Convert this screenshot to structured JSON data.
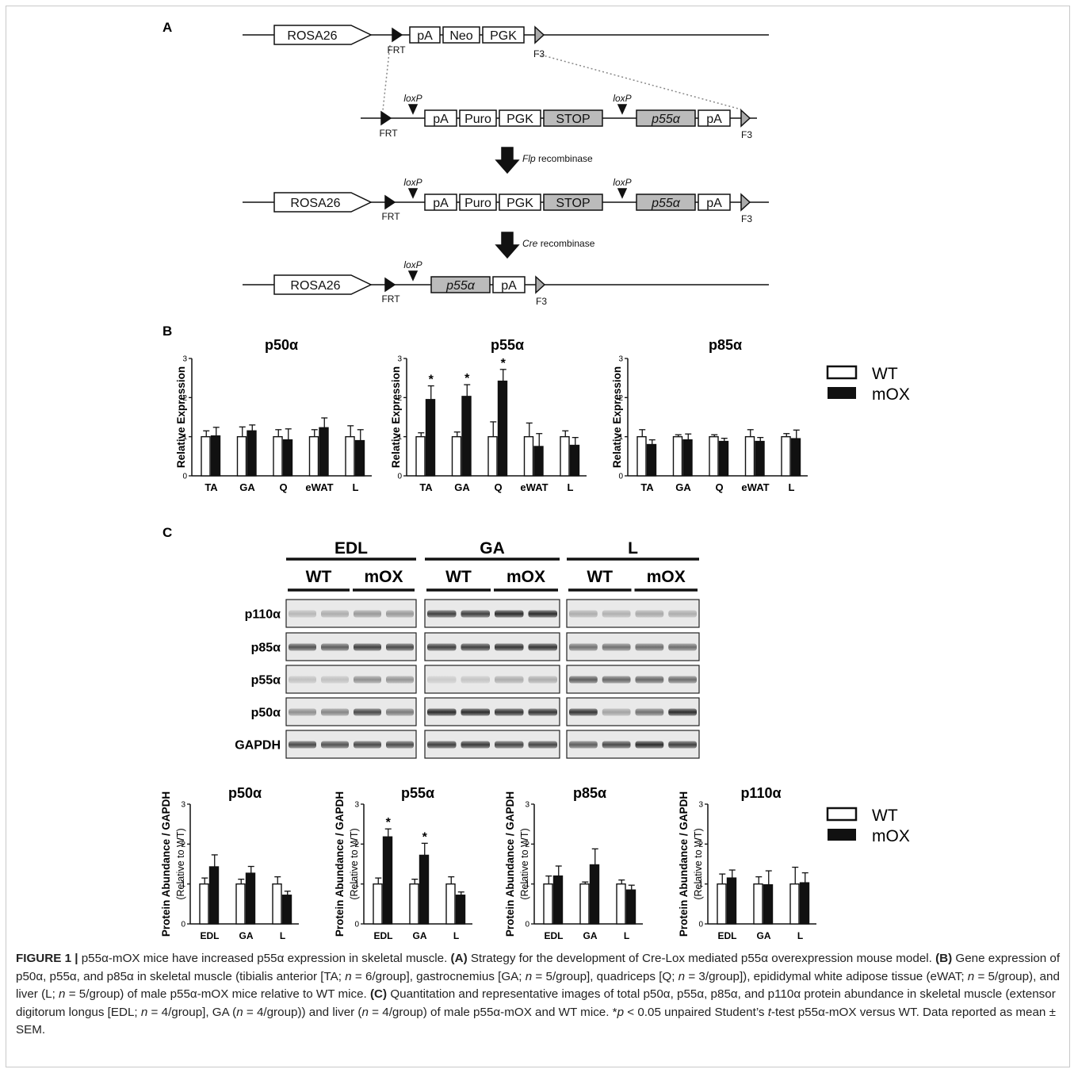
{
  "panel_labels": {
    "a": "A",
    "b": "B",
    "c": "C"
  },
  "construct": {
    "rosa": "ROSA26",
    "frt": "FRT",
    "f3": "F3",
    "loxp": "loxP",
    "pa": "pA",
    "neo": "Neo",
    "pgk": "PGK",
    "puro": "Puro",
    "stop": "STOP",
    "p55": "p55α",
    "flp_rest": "recombinase",
    "flp_italic": "Flp",
    "cre_italic": "Cre",
    "cre_rest": "recombinase"
  },
  "legend": {
    "wt": "WT",
    "mox": "mOX"
  },
  "western": {
    "tissues": [
      "EDL",
      "GA",
      "L"
    ],
    "groups": [
      "WT",
      "mOX"
    ],
    "proteins": [
      "p110α",
      "p85α",
      "p55α",
      "p50α",
      "GAPDH"
    ]
  },
  "chart_data": [
    {
      "type": "bar",
      "title": "p50α",
      "ylabel": "Relative Expression",
      "categories": [
        "TA",
        "GA",
        "Q",
        "eWAT",
        "L"
      ],
      "ylim": [
        0,
        3
      ],
      "yticks": [
        0,
        1,
        2,
        3
      ],
      "series": [
        {
          "name": "WT",
          "values": [
            1.0,
            1.0,
            1.0,
            1.0,
            1.0
          ],
          "errors": [
            0.15,
            0.25,
            0.18,
            0.18,
            0.28
          ]
        },
        {
          "name": "mOX",
          "values": [
            1.02,
            1.15,
            0.92,
            1.23,
            0.9
          ],
          "errors": [
            0.22,
            0.15,
            0.28,
            0.25,
            0.28
          ]
        }
      ],
      "significant": []
    },
    {
      "type": "bar",
      "title": "p55α",
      "ylabel": "Relative Expression",
      "categories": [
        "TA",
        "GA",
        "Q",
        "eWAT",
        "L"
      ],
      "ylim": [
        0,
        3
      ],
      "yticks": [
        0,
        1,
        2,
        3
      ],
      "series": [
        {
          "name": "WT",
          "values": [
            1.0,
            1.0,
            1.0,
            1.0,
            1.0
          ],
          "errors": [
            0.1,
            0.12,
            0.38,
            0.35,
            0.15
          ]
        },
        {
          "name": "mOX",
          "values": [
            1.95,
            2.03,
            2.42,
            0.75,
            0.78
          ],
          "errors": [
            0.35,
            0.3,
            0.3,
            0.33,
            0.2
          ]
        }
      ],
      "significant": [
        0,
        1,
        2
      ]
    },
    {
      "type": "bar",
      "title": "p85α",
      "ylabel": "Relative Expression",
      "categories": [
        "TA",
        "GA",
        "Q",
        "eWAT",
        "L"
      ],
      "ylim": [
        0,
        3
      ],
      "yticks": [
        0,
        1,
        2,
        3
      ],
      "series": [
        {
          "name": "WT",
          "values": [
            1.0,
            1.0,
            1.0,
            1.0,
            1.0
          ],
          "errors": [
            0.18,
            0.05,
            0.05,
            0.18,
            0.08
          ]
        },
        {
          "name": "mOX",
          "values": [
            0.8,
            0.92,
            0.88,
            0.88,
            0.95
          ],
          "errors": [
            0.12,
            0.15,
            0.08,
            0.1,
            0.22
          ]
        }
      ],
      "significant": []
    },
    {
      "type": "bar",
      "title": "p50α",
      "ylabel": "Protein Abundance / GAPDH",
      "ylabel2": "(Relative to WT)",
      "categories": [
        "EDL",
        "GA",
        "L"
      ],
      "ylim": [
        0,
        3
      ],
      "yticks": [
        0,
        1,
        2,
        3
      ],
      "series": [
        {
          "name": "WT",
          "values": [
            1.0,
            1.0,
            1.0
          ],
          "errors": [
            0.15,
            0.12,
            0.18
          ]
        },
        {
          "name": "mOX",
          "values": [
            1.43,
            1.27,
            0.72
          ],
          "errors": [
            0.3,
            0.17,
            0.1
          ]
        }
      ],
      "significant": []
    },
    {
      "type": "bar",
      "title": "p55α",
      "ylabel": "Protein Abundance / GAPDH",
      "ylabel2": "(Relative to WT)",
      "categories": [
        "EDL",
        "GA",
        "L"
      ],
      "ylim": [
        0,
        3
      ],
      "yticks": [
        0,
        1,
        2,
        3
      ],
      "series": [
        {
          "name": "WT",
          "values": [
            1.0,
            1.0,
            1.0
          ],
          "errors": [
            0.15,
            0.12,
            0.18
          ]
        },
        {
          "name": "mOX",
          "values": [
            2.18,
            1.72,
            0.72
          ],
          "errors": [
            0.2,
            0.3,
            0.08
          ]
        }
      ],
      "significant": [
        0,
        1
      ]
    },
    {
      "type": "bar",
      "title": "p85α",
      "ylabel": "Protein Abundance / GAPDH",
      "ylabel2": "(Relative to WT)",
      "categories": [
        "EDL",
        "GA",
        "L"
      ],
      "ylim": [
        0,
        3
      ],
      "yticks": [
        0,
        1,
        2,
        3
      ],
      "series": [
        {
          "name": "WT",
          "values": [
            1.0,
            1.0,
            1.0
          ],
          "errors": [
            0.2,
            0.05,
            0.1
          ]
        },
        {
          "name": "mOX",
          "values": [
            1.2,
            1.48,
            0.85
          ],
          "errors": [
            0.25,
            0.4,
            0.12
          ]
        }
      ],
      "significant": []
    },
    {
      "type": "bar",
      "title": "p110α",
      "ylabel": "Protein Abundance / GAPDH",
      "ylabel2": "(Relative to WT)",
      "categories": [
        "EDL",
        "GA",
        "L"
      ],
      "ylim": [
        0,
        3
      ],
      "yticks": [
        0,
        1,
        2,
        3
      ],
      "series": [
        {
          "name": "WT",
          "values": [
            1.0,
            1.0,
            1.0
          ],
          "errors": [
            0.25,
            0.18,
            0.42
          ]
        },
        {
          "name": "mOX",
          "values": [
            1.15,
            0.98,
            1.03
          ],
          "errors": [
            0.2,
            0.35,
            0.25
          ]
        }
      ],
      "significant": []
    }
  ],
  "caption": {
    "label": "FIGURE 1 |",
    "s1": " p55α-mOX mice have increased p55α expression in skeletal muscle. ",
    "a": "(A)",
    "s2": " Strategy for the development of Cre-Lox mediated p55α overexpression mouse model. ",
    "b": "(B)",
    "s3a": " Gene expression of p50α, p55α, and p85α in skeletal muscle (tibialis anterior [TA; ",
    "n1": "n",
    "s3b": " = 6/group], gastrocnemius [GA; ",
    "n2": "n",
    "s3c": " = 5/group], quadriceps [Q; ",
    "n3": "n",
    "s3d": " = 3/group]), epididymal white adipose tissue (eWAT; ",
    "n4": "n",
    "s3e": " = 5/group), and liver (L; ",
    "n5": "n",
    "s3f": " = 5/group) of male p55α-mOX mice relative to WT mice. ",
    "c": "(C)",
    "s4a": " Quantitation and representative images of total p50α, p55α, p85α, and p110α protein abundance in skeletal muscle (extensor digitorum longus [EDL; ",
    "n6": "n",
    "s4b": " = 4/group], GA (",
    "n7": "n",
    "s4c": " = 4/group)) and liver (",
    "n8": "n",
    "s4d": " = 4/group) of male p55α-mOX and WT mice. *",
    "p": "p",
    "s4e": " < 0.05 unpaired Student’s ",
    "t": "t",
    "s4f": "-test p55α-mOX versus WT. Data reported as mean ± SEM."
  }
}
